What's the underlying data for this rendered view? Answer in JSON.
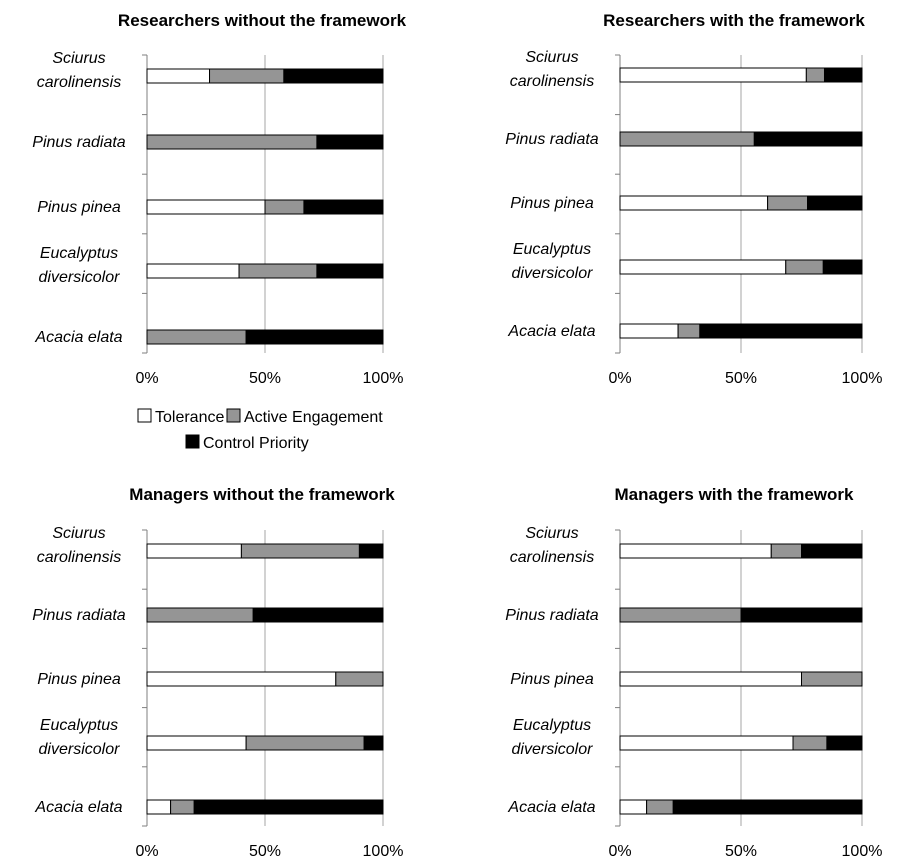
{
  "chart_data": [
    {
      "type": "bar",
      "stacked": true,
      "orientation": "horizontal",
      "title": "Researchers without the framework",
      "categories": [
        "Sciurus carolinensis",
        "Pinus radiata",
        "Pinus pinea",
        "Eucalyptus diversicolor",
        "Acacia elata"
      ],
      "category_lines": [
        [
          "Sciurus",
          "carolinensis"
        ],
        [
          "Pinus radiata"
        ],
        [
          "Pinus pinea"
        ],
        [
          "Eucalyptus",
          "diversicolor"
        ],
        [
          "Acacia elata"
        ]
      ],
      "series": [
        {
          "name": "Tolerance",
          "values": [
            26.5,
            0,
            50,
            39,
            0
          ]
        },
        {
          "name": "Active Engagement",
          "values": [
            31.5,
            72,
            16.5,
            33,
            42
          ]
        },
        {
          "name": "Control Priority",
          "values": [
            42,
            28,
            33.5,
            28,
            58
          ]
        }
      ],
      "xlim": [
        0,
        100
      ],
      "xticks": [
        "0%",
        "50%",
        "100%"
      ],
      "grid": true
    },
    {
      "type": "bar",
      "stacked": true,
      "orientation": "horizontal",
      "title": "Researchers with the framework",
      "categories": [
        "Sciurus carolinensis",
        "Pinus radiata",
        "Pinus pinea",
        "Eucalyptus diversicolor",
        "Acacia elata"
      ],
      "category_lines": [
        [
          "Sciurus",
          "carolinensis"
        ],
        [
          "Pinus radiata"
        ],
        [
          "Pinus pinea"
        ],
        [
          "Eucalyptus",
          "diversicolor"
        ],
        [
          "Acacia elata"
        ]
      ],
      "series": [
        {
          "name": "Tolerance",
          "values": [
            77,
            0,
            61,
            68.5,
            24
          ]
        },
        {
          "name": "Active Engagement",
          "values": [
            7.5,
            55.5,
            16.5,
            15.5,
            9
          ]
        },
        {
          "name": "Control Priority",
          "values": [
            15.5,
            44.5,
            22.5,
            16,
            67
          ]
        }
      ],
      "xlim": [
        0,
        100
      ],
      "xticks": [
        "0%",
        "50%",
        "100%"
      ],
      "grid": true
    },
    {
      "type": "bar",
      "stacked": true,
      "orientation": "horizontal",
      "title": "Managers without the framework",
      "categories": [
        "Sciurus carolinensis",
        "Pinus radiata",
        "Pinus pinea",
        "Eucalyptus diversicolor",
        "Acacia elata"
      ],
      "category_lines": [
        [
          "Sciurus",
          "carolinensis"
        ],
        [
          "Pinus radiata"
        ],
        [
          "Pinus pinea"
        ],
        [
          "Eucalyptus",
          "diversicolor"
        ],
        [
          "Acacia elata"
        ]
      ],
      "series": [
        {
          "name": "Tolerance",
          "values": [
            40,
            0,
            80,
            42,
            10
          ]
        },
        {
          "name": "Active Engagement",
          "values": [
            50,
            45,
            20,
            50,
            10
          ]
        },
        {
          "name": "Control Priority",
          "values": [
            10,
            55,
            0,
            8,
            80
          ]
        }
      ],
      "xlim": [
        0,
        100
      ],
      "xticks": [
        "0%",
        "50%",
        "100%"
      ],
      "grid": true
    },
    {
      "type": "bar",
      "stacked": true,
      "orientation": "horizontal",
      "title": "Managers with the framework",
      "categories": [
        "Sciurus carolinensis",
        "Pinus radiata",
        "Pinus pinea",
        "Eucalyptus diversicolor",
        "Acacia elata"
      ],
      "category_lines": [
        [
          "Sciurus",
          "carolinensis"
        ],
        [
          "Pinus radiata"
        ],
        [
          "Pinus pinea"
        ],
        [
          "Eucalyptus",
          "diversicolor"
        ],
        [
          "Acacia elata"
        ]
      ],
      "series": [
        {
          "name": "Tolerance",
          "values": [
            62.5,
            0,
            75,
            71.5,
            11
          ]
        },
        {
          "name": "Active Engagement",
          "values": [
            12.5,
            50,
            25,
            14,
            11
          ]
        },
        {
          "name": "Control Priority",
          "values": [
            25,
            50,
            0,
            14.5,
            78
          ]
        }
      ],
      "xlim": [
        0,
        100
      ],
      "xticks": [
        "0%",
        "50%",
        "100%"
      ],
      "grid": true
    }
  ],
  "legend": {
    "items": [
      {
        "label": "Tolerance",
        "color": "#ffffff"
      },
      {
        "label": "Active Engagement",
        "color": "#959595"
      },
      {
        "label": "Control Priority",
        "color": "#000000"
      }
    ]
  },
  "colors": {
    "tolerance": "#ffffff",
    "active_engagement": "#959595",
    "control_priority": "#000000",
    "grid": "#a6a6a6",
    "axis": "#7f7f7f",
    "bar_edge": "#000000"
  }
}
